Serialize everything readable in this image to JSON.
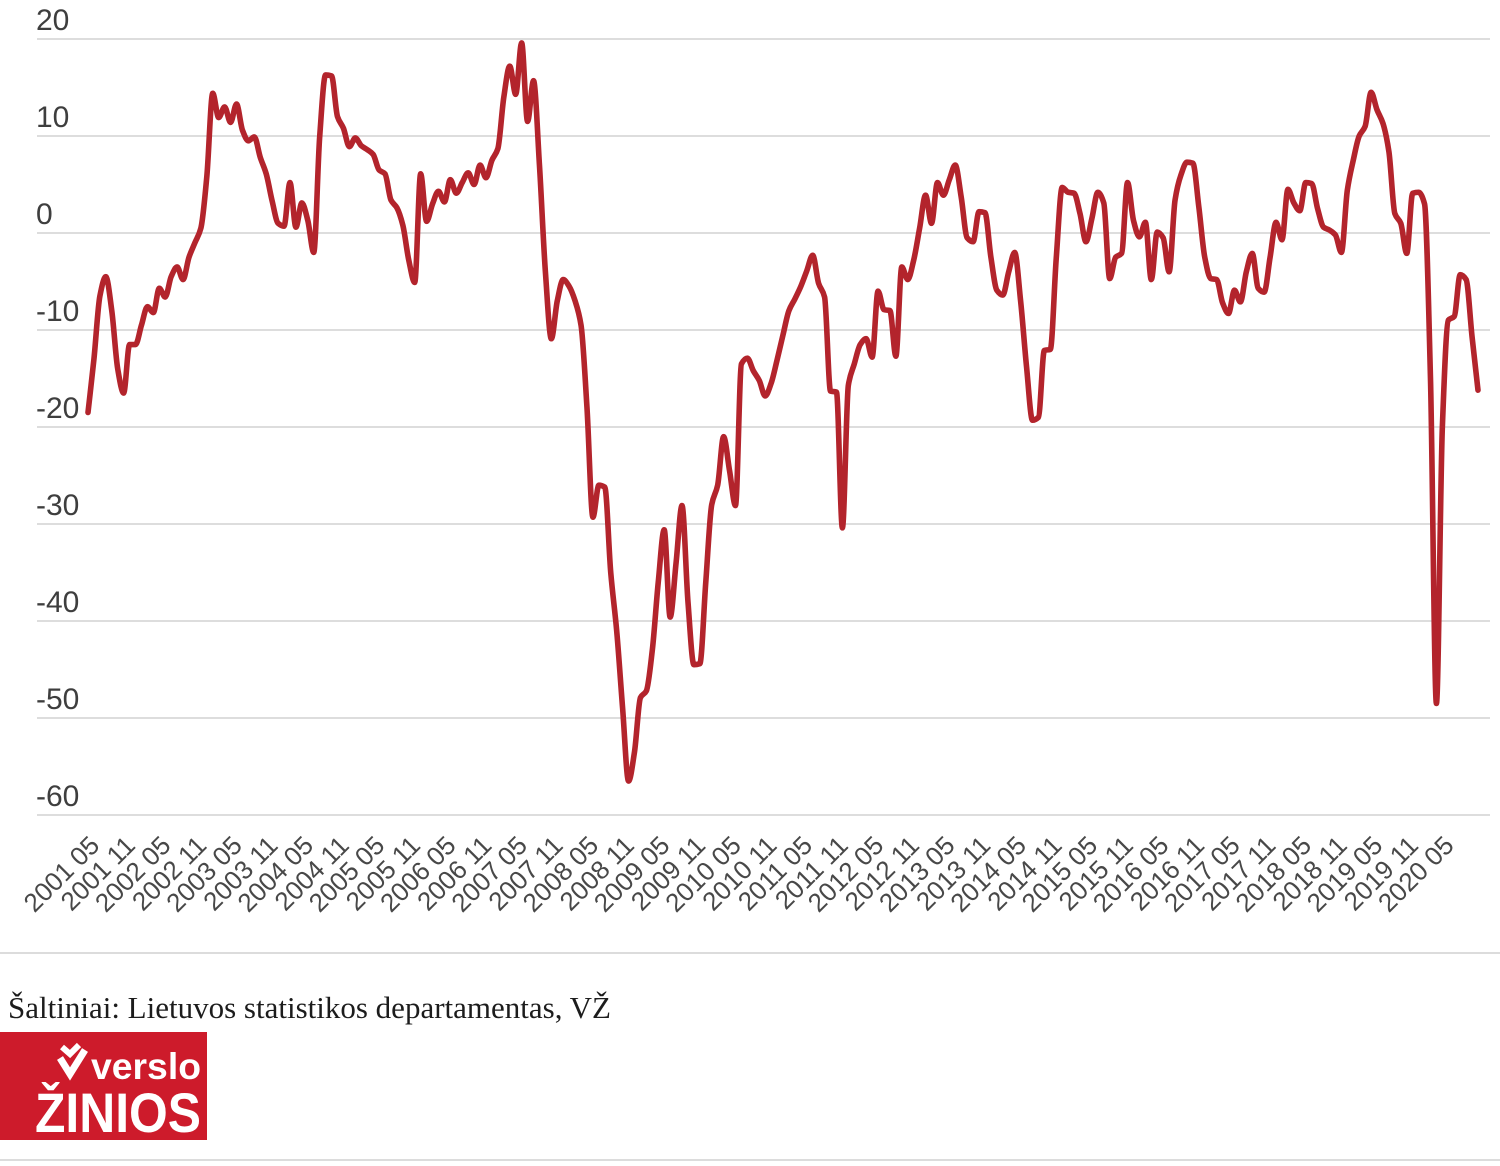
{
  "chart_data": {
    "type": "line",
    "title": "",
    "xlabel": "",
    "ylabel": "",
    "frequency": "monthly",
    "x_start": "2001 05",
    "x_end_of_line": "2020 11",
    "x_tick_labels": [
      "2001 05",
      "2001 11",
      "2002 05",
      "2002 11",
      "2003 05",
      "2003 11",
      "2004 05",
      "2004 11",
      "2005 05",
      "2005 11",
      "2006 05",
      "2006 11",
      "2007 05",
      "2007 11",
      "2008 05",
      "2008 11",
      "2009 05",
      "2009 11",
      "2010 05",
      "2010 11",
      "2011 05",
      "2011 11",
      "2012 05",
      "2012 11",
      "2013 05",
      "2013 11",
      "2014 05",
      "2014 11",
      "2015 05",
      "2015 11",
      "2016 05",
      "2016 11",
      "2017 05",
      "2017 11",
      "2018 05",
      "2018 11",
      "2019 05",
      "2019 11",
      "2020 05"
    ],
    "y_ticks": [
      20,
      10,
      0,
      -10,
      -20,
      -30,
      -40,
      -50,
      -60
    ],
    "ylim": [
      -62,
      21
    ],
    "grid": true,
    "legend_position": "none",
    "line_color": "#b3242c",
    "grid_color": "#d8d8d8",
    "tick_label_color": "#3e3e3e",
    "series": [
      {
        "values": [
          -18.5,
          -13.0,
          -6.5,
          -4.5,
          -8.0,
          -14.0,
          -16.5,
          -11.5,
          -11.5,
          -9.5,
          -7.6,
          -8.2,
          -5.7,
          -6.6,
          -4.5,
          -3.5,
          -4.8,
          -2.5,
          -1.0,
          0.5,
          5.8,
          14.4,
          11.9,
          13.0,
          11.4,
          13.3,
          10.6,
          9.5,
          9.9,
          7.8,
          6.1,
          3.3,
          1.0,
          0.7,
          5.2,
          0.6,
          3.1,
          1.3,
          -2.0,
          9.9,
          16.3,
          16.2,
          12.0,
          10.8,
          8.9,
          9.8,
          9.0,
          8.6,
          8.1,
          6.5,
          6.1,
          3.4,
          2.6,
          0.8,
          -2.8,
          -5.1,
          6.1,
          1.2,
          3.0,
          4.3,
          3.2,
          5.5,
          4.1,
          5.2,
          6.2,
          5.0,
          7.0,
          5.7,
          7.5,
          8.7,
          14.0,
          17.2,
          14.3,
          19.6,
          11.5,
          15.7,
          7.0,
          -4.0,
          -10.9,
          -7.0,
          -4.8,
          -5.5,
          -7.0,
          -9.5,
          -18.0,
          -29.3,
          -26.0,
          -26.2,
          -35.0,
          -41.0,
          -49.0,
          -56.5,
          -53.5,
          -47.9,
          -47.2,
          -43.0,
          -36.0,
          -30.6,
          -39.6,
          -34.0,
          -28.1,
          -38.0,
          -44.5,
          -44.4,
          -36.0,
          -28.0,
          -26.0,
          -21.0,
          -24.5,
          -28.1,
          -13.5,
          -12.9,
          -14.2,
          -15.2,
          -16.8,
          -15.5,
          -13.1,
          -10.5,
          -8.0,
          -6.8,
          -5.5,
          -3.9,
          -2.3,
          -5.2,
          -6.6,
          -16.3,
          -16.4,
          -30.4,
          -15.7,
          -13.5,
          -11.5,
          -10.9,
          -12.8,
          -6.0,
          -7.9,
          -8.0,
          -12.7,
          -3.5,
          -4.8,
          -2.8,
          0.5,
          3.9,
          1.0,
          5.2,
          3.9,
          5.5,
          7.0,
          3.7,
          -0.5,
          -0.9,
          2.2,
          2.1,
          -2.5,
          -5.9,
          -6.4,
          -4.0,
          -2.0,
          -7.0,
          -13.8,
          -19.3,
          -19.0,
          -12.1,
          -12.0,
          -2.6,
          4.7,
          4.2,
          4.1,
          2.0,
          -0.9,
          1.5,
          4.2,
          3.1,
          -4.7,
          -2.5,
          -2.1,
          5.2,
          1.3,
          -0.4,
          1.1,
          -4.8,
          0.1,
          -0.5,
          -4.0,
          3.4,
          6.0,
          7.3,
          7.2,
          2.7,
          -2.5,
          -4.7,
          -4.8,
          -7.2,
          -8.3,
          -5.9,
          -7.1,
          -4.0,
          -2.1,
          -5.7,
          -6.1,
          -2.5,
          1.1,
          -0.7,
          4.5,
          3.1,
          2.3,
          5.2,
          5.1,
          2.5,
          0.6,
          0.3,
          -0.2,
          -2.0,
          4.4,
          7.5,
          10.0,
          11.0,
          14.5,
          12.7,
          11.3,
          8.4,
          2.0,
          1.0,
          -2.1,
          4.1,
          4.2,
          3.0,
          -15.0,
          -48.5,
          -20.0,
          -9.0,
          -8.6,
          -4.3,
          -4.8,
          -10.7,
          -16.2
        ]
      }
    ]
  },
  "footer": {
    "source_text": "Šaltiniai: Lietuvos statistikos departamentas, VŽ",
    "logo": {
      "line1": "verslo",
      "line2": "ŽINIOS",
      "bg_color": "#cd1b2b",
      "text_color": "#ffffff"
    }
  }
}
